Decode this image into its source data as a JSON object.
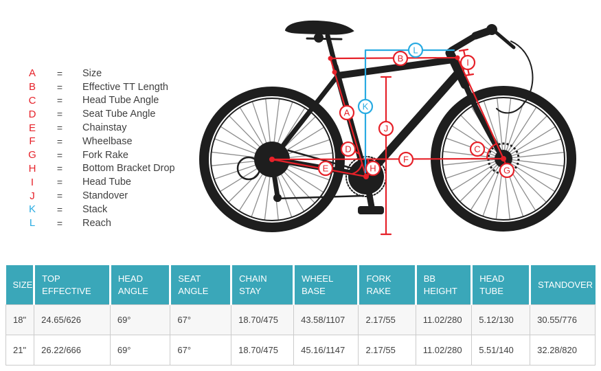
{
  "colors": {
    "accent_red": "#e62129",
    "accent_blue": "#29abe2",
    "table_header_teal": "#3aa7b9",
    "bike_silhouette": "#1e1e1e",
    "row_alt_bg": "#f7f7f7",
    "table_border": "#cbcbcb"
  },
  "legend": {
    "separator": "=",
    "items": [
      {
        "letter": "A",
        "label": "Size"
      },
      {
        "letter": "B",
        "label": "Effective TT Length"
      },
      {
        "letter": "C",
        "label": "Head Tube Angle"
      },
      {
        "letter": "D",
        "label": "Seat Tube Angle"
      },
      {
        "letter": "E",
        "label": "Chainstay"
      },
      {
        "letter": "F",
        "label": "Wheelbase"
      },
      {
        "letter": "G",
        "label": "Fork Rake"
      },
      {
        "letter": "H",
        "label": "Bottom Bracket Drop"
      },
      {
        "letter": "I",
        "label": "Head Tube"
      },
      {
        "letter": "J",
        "label": "Standover"
      },
      {
        "letter": "K",
        "label": "Stack"
      },
      {
        "letter": "L",
        "label": "Reach"
      }
    ]
  },
  "table": {
    "headers": [
      "SIZE",
      "TOP EFFECTIVE",
      "HEAD ANGLE",
      "SEAT ANGLE",
      "CHAIN STAY",
      "WHEEL BASE",
      "FORK RAKE",
      "BB HEIGHT",
      "HEAD TUBE",
      "STANDOVER"
    ],
    "rows": [
      [
        "18\"",
        "24.65/626",
        "69°",
        "67°",
        "18.70/475",
        "43.58/1107",
        "2.17/55",
        "11.02/280",
        "5.12/130",
        "30.55/776"
      ],
      [
        "21\"",
        "26.22/666",
        "69°",
        "67°",
        "18.70/475",
        "45.16/1147",
        "2.17/55",
        "11.02/280",
        "5.51/140",
        "32.28/820"
      ]
    ]
  }
}
